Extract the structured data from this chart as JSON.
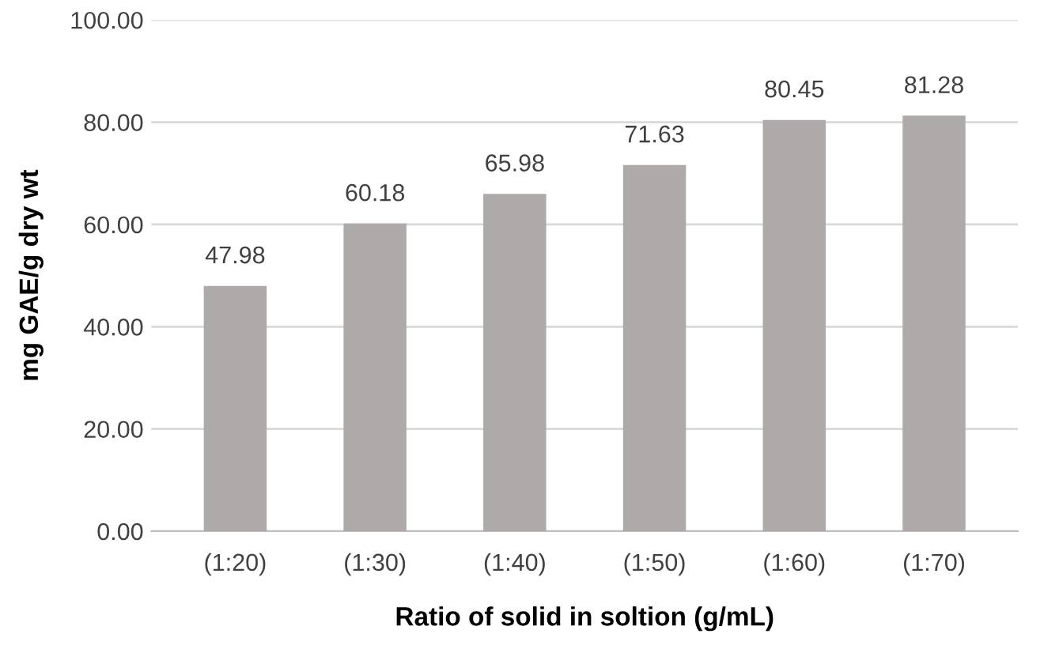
{
  "chart_data": {
    "type": "bar",
    "xlabel": "Ratio of solid in soltion (g/mL)",
    "ylabel": "mg GAE/g dry wt",
    "categories": [
      "(1:20)",
      "(1:30)",
      "(1:40)",
      "(1:50)",
      "(1:60)",
      "(1:70)"
    ],
    "values": [
      47.98,
      60.18,
      65.98,
      71.63,
      80.45,
      81.28
    ],
    "color": "#aeaaaa",
    "ylim": [
      0,
      100
    ],
    "yticks": [
      {
        "value": 0,
        "label": "0.00"
      },
      {
        "value": 20,
        "label": "20.00"
      },
      {
        "value": 40,
        "label": "40.00"
      },
      {
        "value": 60,
        "label": "60.00"
      },
      {
        "value": 80,
        "label": "80.00"
      },
      {
        "value": 100,
        "label": "100.00"
      }
    ],
    "grid": "y",
    "data_labels": true
  }
}
